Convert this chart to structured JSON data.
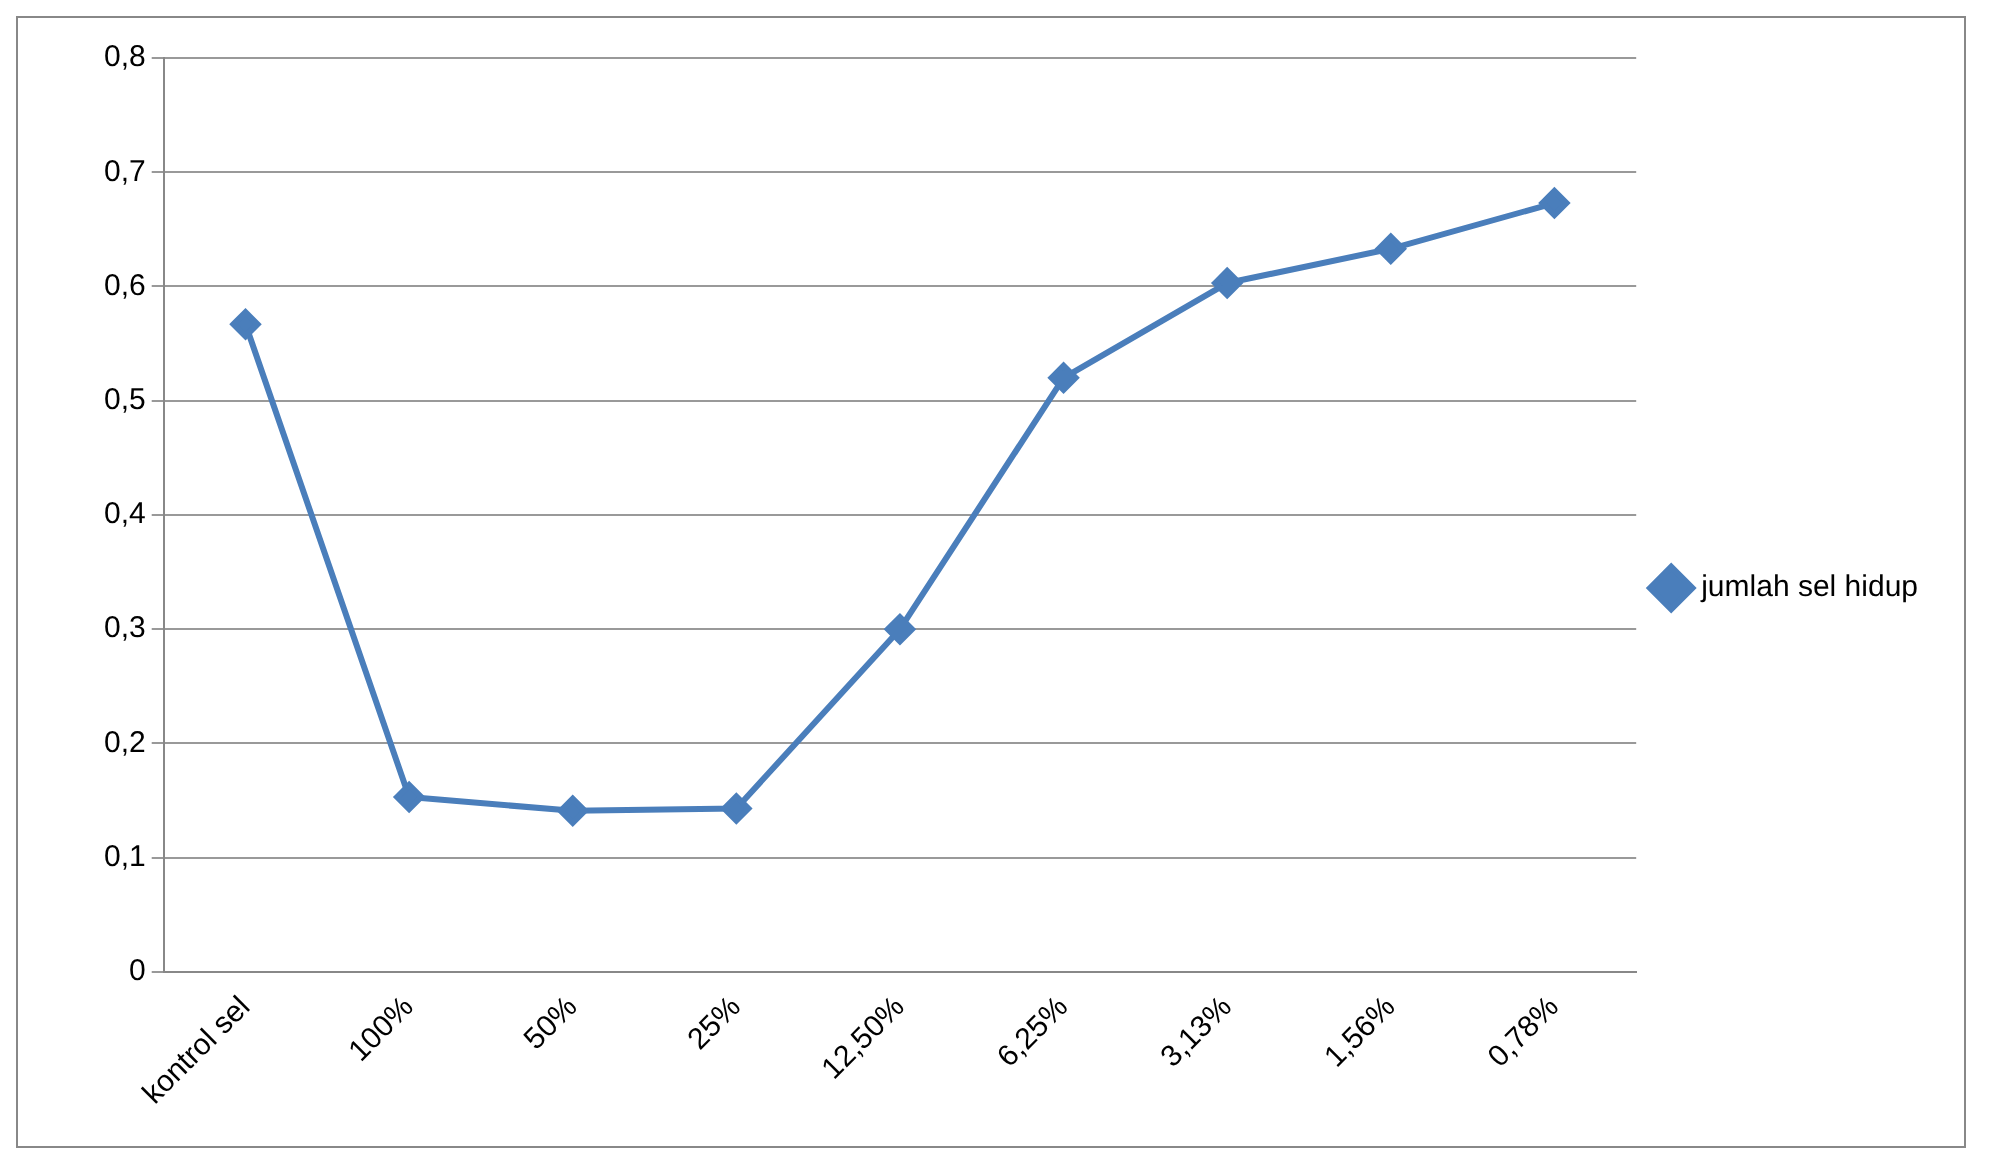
{
  "chart_data": {
    "type": "line",
    "categories": [
      "kontrol sel",
      "100%",
      "50%",
      "25%",
      "12,50%",
      "6,25%",
      "3,13%",
      "1,56%",
      "0,78%"
    ],
    "series": [
      {
        "name": "jumlah sel hidup",
        "color": "#4a7ebb",
        "values": [
          0.567,
          0.153,
          0.141,
          0.143,
          0.3,
          0.52,
          0.603,
          0.633,
          0.673
        ]
      }
    ],
    "ylim": [
      0,
      0.8
    ],
    "yticks": [
      {
        "value": 0,
        "label": "0"
      },
      {
        "value": 0.1,
        "label": "0,1"
      },
      {
        "value": 0.2,
        "label": "0,2"
      },
      {
        "value": 0.3,
        "label": "0,3"
      },
      {
        "value": 0.4,
        "label": "0,4"
      },
      {
        "value": 0.5,
        "label": "0,5"
      },
      {
        "value": 0.6,
        "label": "0,6"
      },
      {
        "value": 0.7,
        "label": "0,7"
      },
      {
        "value": 0.8,
        "label": "0,8"
      }
    ],
    "grid": "y",
    "legend": "right",
    "marker": "diamond",
    "line_style": "solid"
  }
}
